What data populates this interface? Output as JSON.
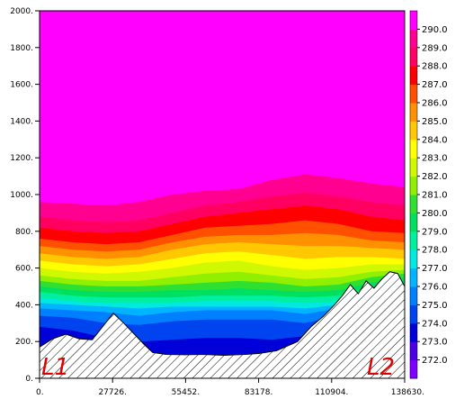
{
  "chart_data": {
    "type": "heatmap",
    "title": "",
    "xlabel": "",
    "ylabel": "",
    "xlim": [
      0,
      138630
    ],
    "ylim": [
      0,
      2000
    ],
    "x_ticks": [
      {
        "value": 0,
        "label": "0."
      },
      {
        "value": 27726,
        "label": "27726."
      },
      {
        "value": 55452,
        "label": "55452."
      },
      {
        "value": 83178,
        "label": "83178."
      },
      {
        "value": 110904,
        "label": "110904."
      },
      {
        "value": 138630,
        "label": "138630."
      }
    ],
    "y_ticks": [
      {
        "value": 0,
        "label": "0."
      },
      {
        "value": 200,
        "label": "200."
      },
      {
        "value": 400,
        "label": "400."
      },
      {
        "value": 600,
        "label": "600."
      },
      {
        "value": 800,
        "label": "800."
      },
      {
        "value": 1000,
        "label": "1000."
      },
      {
        "value": 1200,
        "label": "1200."
      },
      {
        "value": 1400,
        "label": "1400."
      },
      {
        "value": 1600,
        "label": "1600."
      },
      {
        "value": 1800,
        "label": "1800."
      },
      {
        "value": 2000,
        "label": "2000."
      }
    ],
    "colorbar": {
      "position": "right",
      "labels": [
        "272.0",
        "273.0",
        "274.0",
        "275.0",
        "276.0",
        "277.0",
        "278.0",
        "279.0",
        "280.0",
        "281.0",
        "282.0",
        "283.0",
        "284.0",
        "285.0",
        "286.0",
        "287.0",
        "288.0",
        "289.0",
        "290.0"
      ],
      "colors": [
        "#8000ff",
        "#4b00e6",
        "#0000d8",
        "#0044f0",
        "#0080ff",
        "#00b4ff",
        "#00e8e0",
        "#00f0a0",
        "#00e060",
        "#30e030",
        "#90f000",
        "#d0f800",
        "#ffff00",
        "#ffc800",
        "#ff9000",
        "#ff5000",
        "#ff0000",
        "#ff0060",
        "#ff0090",
        "#ff00ff"
      ]
    },
    "terrain_profile": {
      "x": [
        0,
        5000,
        10000,
        15000,
        20000,
        25000,
        28000,
        32000,
        36000,
        40000,
        43000,
        48000,
        55452,
        62000,
        70000,
        78000,
        83178,
        90000,
        98000,
        103000,
        108000,
        112000,
        115000,
        118000,
        121000,
        124000,
        127000,
        130000,
        133000,
        136000,
        138630
      ],
      "y": [
        170,
        215,
        240,
        215,
        210,
        300,
        355,
        300,
        240,
        180,
        140,
        130,
        128,
        130,
        125,
        130,
        135,
        150,
        200,
        280,
        340,
        400,
        450,
        510,
        460,
        530,
        490,
        540,
        580,
        570,
        500
      ]
    },
    "isotherm_bands": [
      {
        "value": 290.0,
        "lower_y": [
          960,
          950,
          940,
          960,
          1000,
          1020,
          1030,
          1080,
          1110,
          1090,
          1060,
          1040
        ]
      },
      {
        "value": 289.0,
        "lower_y": [
          880,
          860,
          850,
          860,
          900,
          940,
          960,
          990,
          1010,
          990,
          960,
          940
        ]
      },
      {
        "value": 288.0,
        "lower_y": [
          820,
          800,
          790,
          800,
          840,
          880,
          900,
          920,
          940,
          920,
          880,
          860
        ]
      },
      {
        "value": 287.0,
        "lower_y": [
          760,
          740,
          730,
          740,
          780,
          820,
          830,
          840,
          860,
          840,
          800,
          790
        ]
      },
      {
        "value": 286.0,
        "lower_y": [
          720,
          700,
          690,
          700,
          740,
          770,
          780,
          780,
          790,
          780,
          750,
          740
        ]
      },
      {
        "value": 285.0,
        "lower_y": [
          680,
          660,
          650,
          660,
          700,
          730,
          740,
          730,
          720,
          720,
          710,
          700
        ]
      },
      {
        "value": 284.0,
        "lower_y": [
          640,
          620,
          610,
          620,
          650,
          680,
          690,
          670,
          650,
          660,
          660,
          650
        ]
      },
      {
        "value": 283.0,
        "lower_y": [
          600,
          580,
          570,
          580,
          600,
          630,
          640,
          610,
          590,
          600,
          620,
          620
        ]
      },
      {
        "value": 282.0,
        "lower_y": [
          560,
          540,
          530,
          530,
          550,
          570,
          580,
          560,
          540,
          550,
          580,
          590
        ]
      },
      {
        "value": 281.0,
        "lower_y": [
          530,
          510,
          500,
          500,
          510,
          520,
          530,
          520,
          500,
          510,
          550,
          570
        ]
      },
      {
        "value": 280.0,
        "lower_y": [
          500,
          480,
          470,
          470,
          480,
          480,
          490,
          480,
          470,
          480,
          520,
          550
        ]
      },
      {
        "value": 279.0,
        "lower_y": [
          470,
          450,
          440,
          440,
          440,
          450,
          450,
          450,
          440,
          450,
          490,
          520
        ]
      },
      {
        "value": 278.0,
        "lower_y": [
          440,
          420,
          410,
          410,
          410,
          420,
          420,
          420,
          410,
          420,
          460,
          500
        ]
      },
      {
        "value": 277.0,
        "lower_y": [
          410,
          400,
          390,
          380,
          390,
          390,
          390,
          390,
          380,
          400,
          440,
          480
        ]
      },
      {
        "value": 276.0,
        "lower_y": [
          380,
          370,
          360,
          340,
          360,
          370,
          370,
          370,
          350,
          380,
          420,
          460
        ]
      },
      {
        "value": 275.0,
        "lower_y": [
          340,
          330,
          300,
          290,
          310,
          320,
          320,
          320,
          300,
          340,
          400,
          440
        ]
      },
      {
        "value": 274.0,
        "lower_y": [
          280,
          260,
          220,
          200,
          210,
          220,
          220,
          210,
          230,
          300,
          380,
          420
        ]
      },
      {
        "value": 273.0,
        "lower_y": [
          0,
          0,
          0,
          0,
          0,
          0,
          0,
          0,
          0,
          0,
          0,
          0
        ]
      }
    ],
    "band_x": [
      0,
      12603,
      25206,
      37809,
      50412,
      63015,
      75618,
      88221,
      100824,
      113427,
      126030,
      138630
    ],
    "endpoint_labels": [
      "L1",
      "L2"
    ],
    "grid": false,
    "legend": "colorbar-right"
  }
}
